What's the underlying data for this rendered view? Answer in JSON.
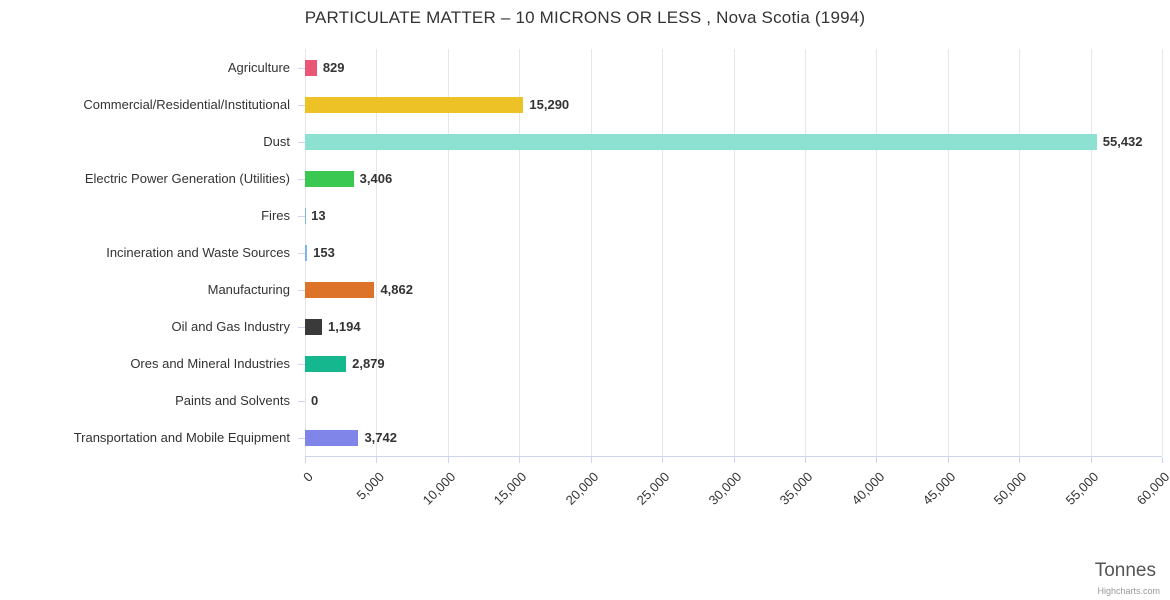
{
  "title": "PARTICULATE MATTER – 10 MICRONS OR LESS , Nova Scotia (1994)",
  "credit": "Highcharts.com",
  "chart_data": {
    "type": "bar",
    "orientation": "horizontal",
    "title": "PARTICULATE MATTER – 10 MICRONS OR LESS , Nova Scotia (1994)",
    "xlabel": "Tonnes",
    "ylabel": "",
    "xlim": [
      0,
      60000
    ],
    "grid": "vertical",
    "legend": "none",
    "categories": [
      "Agriculture",
      "Commercial/Residential/Institutional",
      "Dust",
      "Electric Power Generation (Utilities)",
      "Fires",
      "Incineration and Waste Sources",
      "Manufacturing",
      "Oil and Gas Industry",
      "Ores and Mineral Industries",
      "Paints and Solvents",
      "Transportation and Mobile Equipment"
    ],
    "values": [
      829,
      15290,
      55432,
      3406,
      13,
      153,
      4862,
      1194,
      2879,
      0,
      3742
    ],
    "value_labels": [
      "829",
      "15,290",
      "55,432",
      "3,406",
      "13",
      "153",
      "4,862",
      "1,194",
      "2,879",
      "0",
      "3,742"
    ],
    "colors": [
      "#ea5675",
      "#edc226",
      "#8de1d1",
      "#3bc852",
      "#7cb5ec",
      "#7cb5ec",
      "#dc7328",
      "#3a3a3a",
      "#15b78f",
      "#cccccc",
      "#8085e9"
    ],
    "x_ticks": [
      0,
      5000,
      10000,
      15000,
      20000,
      25000,
      30000,
      35000,
      40000,
      45000,
      50000,
      55000,
      60000
    ],
    "x_tick_labels": [
      "0",
      "5,000",
      "10,000",
      "15,000",
      "20,000",
      "25,000",
      "30,000",
      "35,000",
      "40,000",
      "45,000",
      "50,000",
      "55,000",
      "60,000"
    ]
  },
  "colors": {
    "grid": "#e6e6e6",
    "axis": "#ccd6eb",
    "text": "#333333",
    "muted": "#666666"
  }
}
